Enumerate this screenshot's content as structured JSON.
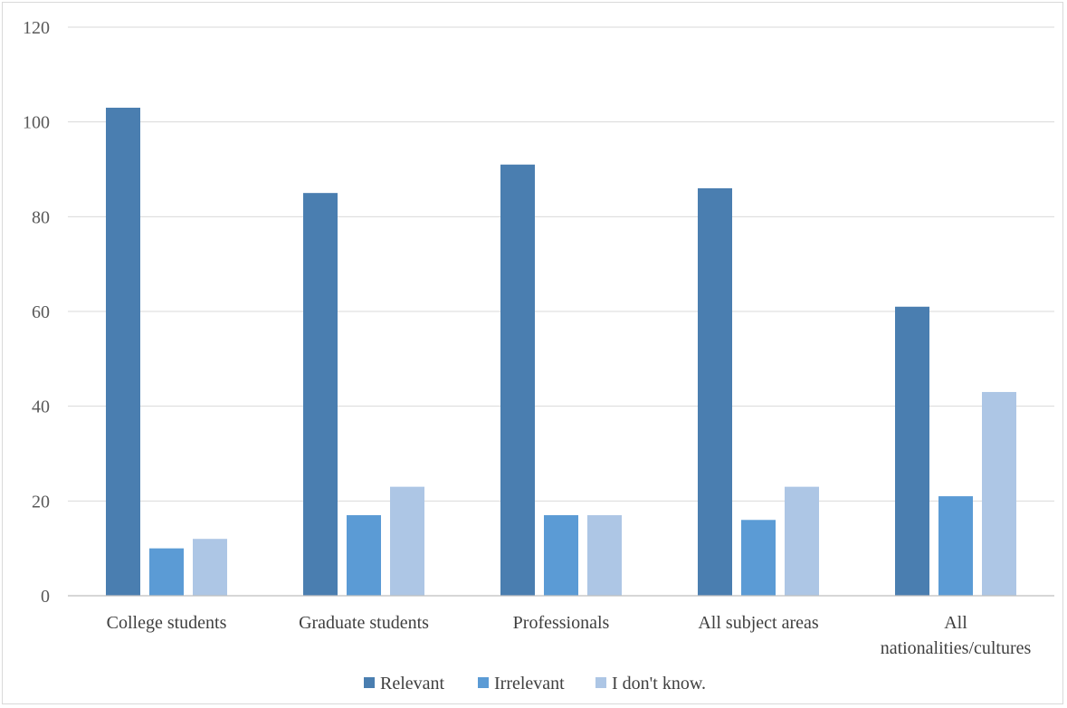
{
  "chart_data": {
    "type": "bar",
    "categories": [
      [
        "College students"
      ],
      [
        "Graduate students"
      ],
      [
        "Professionals"
      ],
      [
        "All subject areas"
      ],
      [
        "All",
        "nationalities/cultures"
      ]
    ],
    "series": [
      {
        "name": "Relevant",
        "color": "#4a7eb0",
        "values": [
          103,
          85,
          91,
          86,
          61
        ]
      },
      {
        "name": "Irrelevant",
        "color": "#5b9bd5",
        "values": [
          10,
          17,
          17,
          16,
          21
        ]
      },
      {
        "name": "I don't know.",
        "color": "#adc6e5",
        "values": [
          12,
          23,
          17,
          23,
          43
        ]
      }
    ],
    "yticks": [
      "0",
      "20",
      "40",
      "60",
      "80",
      "100",
      "120"
    ],
    "ylim": [
      0,
      120
    ],
    "grid": true,
    "legend_position": "bottom"
  }
}
